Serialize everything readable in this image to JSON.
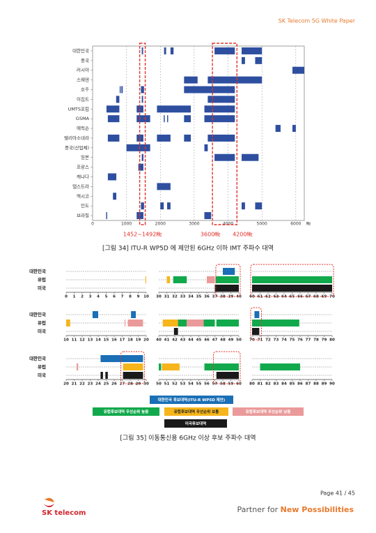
{
  "header": {
    "title": "SK Telecom 5G White Paper"
  },
  "chart_data": [
    {
      "type": "gantt",
      "caption": "[그림 34] ITU-R WP5D 에 제안된 6GHz 이하 IMT 주파수 대역",
      "x_unit": "㎒",
      "color": "#2e4fa0",
      "xlim": [
        0,
        6250
      ],
      "xticks": [
        0,
        1000,
        2000,
        3000,
        4000,
        5000,
        6000
      ],
      "grid": true,
      "categories": [
        "대한민국",
        "중국",
        "러시아",
        "스웨덴",
        "호주",
        "이집트",
        "UMTS포럼",
        "GSMA",
        "에릭슨",
        "텔리아소네라",
        "중국(산업체)",
        "일본",
        "프랑스",
        "캐나다",
        "텔스트라",
        "멕시코",
        "인도",
        "브라질"
      ],
      "ranges": [
        [
          [
            1452,
            1492
          ],
          [
            2110,
            2170
          ],
          [
            2300,
            2390
          ],
          [
            3600,
            4200
          ],
          [
            4400,
            5000
          ]
        ],
        [
          [
            4400,
            4500
          ],
          [
            4800,
            5000
          ]
        ],
        [
          [
            5900,
            6250
          ]
        ],
        [
          [
            2700,
            3100
          ],
          [
            3400,
            5000
          ]
        ],
        [
          [
            800,
            830
          ],
          [
            850,
            890
          ],
          [
            1427,
            1518
          ],
          [
            2700,
            4200
          ]
        ],
        [
          [
            694,
            790
          ],
          [
            1452,
            1492
          ],
          [
            3400,
            4200
          ]
        ],
        [
          [
            410,
            790
          ],
          [
            1300,
            1500
          ],
          [
            1900,
            2900
          ],
          [
            3300,
            4200
          ]
        ],
        [
          [
            450,
            790
          ],
          [
            1300,
            1700
          ],
          [
            2100,
            2130
          ],
          [
            2200,
            2230
          ],
          [
            2700,
            2900
          ],
          [
            3300,
            4200
          ]
        ],
        [
          [
            5400,
            5550
          ],
          [
            5900,
            6000
          ]
        ],
        [
          [
            450,
            790
          ],
          [
            1300,
            1500
          ],
          [
            1900,
            2300
          ],
          [
            2700,
            2900
          ],
          [
            3400,
            4200
          ]
        ],
        [
          [
            1000,
            1700
          ],
          [
            3300,
            3400
          ]
        ],
        [
          [
            1452,
            1500
          ],
          [
            3600,
            4200
          ],
          [
            4400,
            4900
          ]
        ],
        [
          [
            1350,
            1500
          ]
        ],
        [
          [
            450,
            700
          ]
        ],
        [
          [
            1900,
            2300
          ]
        ],
        [
          [
            600,
            700
          ]
        ],
        [
          [
            1427,
            1518
          ],
          [
            2000,
            2100
          ],
          [
            2200,
            2300
          ],
          [
            4400,
            4500
          ],
          [
            4800,
            5000
          ]
        ],
        [
          [
            400,
            430
          ],
          [
            1300,
            1500
          ],
          [
            3300,
            3500
          ]
        ]
      ],
      "highlights": [
        {
          "range": [
            1452,
            1492
          ],
          "labels": [
            "1452~1492㎒"
          ]
        },
        {
          "range": [
            3600,
            4200
          ],
          "labels": [
            "3600㎒",
            "4200㎒"
          ]
        }
      ]
    },
    {
      "type": "range-panels",
      "caption": "[그림 35] 이동통신용 6GHz 이상 후보 주파수 대역",
      "rows": [
        "대한민국",
        "유럽",
        "미국"
      ],
      "panels": [
        {
          "xlim": [
            0,
            10
          ],
          "xticks": [
            0,
            1,
            2,
            3,
            4,
            5,
            6,
            7,
            8,
            9,
            10
          ]
        },
        {
          "xlim": [
            10,
            20
          ],
          "xticks": [
            10,
            11,
            12,
            13,
            14,
            15,
            16,
            17,
            18,
            19,
            20
          ]
        },
        {
          "xlim": [
            20,
            30
          ],
          "xticks": [
            20,
            21,
            22,
            23,
            24,
            25,
            26,
            27,
            28,
            29,
            30
          ]
        },
        {
          "xlim": [
            30,
            40
          ],
          "xticks": [
            30,
            31,
            32,
            33,
            34,
            35,
            36,
            37,
            38,
            39,
            40
          ]
        },
        {
          "xlim": [
            40,
            50
          ],
          "xticks": [
            40,
            41,
            42,
            43,
            44,
            45,
            46,
            47,
            48,
            49,
            50
          ]
        },
        {
          "xlim": [
            50,
            60
          ],
          "xticks": [
            50,
            51,
            52,
            53,
            54,
            55,
            56,
            57,
            58,
            59,
            60
          ]
        },
        {
          "xlim": [
            60,
            70
          ],
          "xticks": [
            60,
            61,
            62,
            63,
            64,
            65,
            66,
            67,
            68,
            69,
            70
          ]
        },
        {
          "xlim": [
            70,
            80
          ],
          "xticks": [
            70,
            71,
            72,
            73,
            74,
            75,
            76,
            77,
            78,
            79,
            80
          ]
        },
        {
          "xlim": [
            80,
            90
          ],
          "xticks": [
            80,
            81,
            82,
            83,
            84,
            85,
            86,
            87,
            88,
            89,
            90
          ]
        }
      ],
      "series": [
        {
          "name": "대한민국 후보대역(ITU-R WP5D 제안)",
          "color": "#1a6fb6",
          "row": 0,
          "ranges": [
            [
              38,
              39.5
            ],
            [
              13.3,
              14
            ],
            [
              18.1,
              18.7
            ],
            [
              70.3,
              70.9
            ],
            [
              24.3,
              29.6
            ]
          ]
        },
        {
          "name": "유럽후보대역 우선순위 높음",
          "color": "#12a94c",
          "row": 1,
          "ranges": [
            [
              31.8,
              33.5
            ],
            [
              37.1,
              40
            ],
            [
              60,
              70
            ],
            [
              42.4,
              43.5
            ],
            [
              45.6,
              47
            ],
            [
              47.2,
              50
            ],
            [
              70,
              75.9
            ],
            [
              50,
              50.3
            ],
            [
              55.7,
              60
            ],
            [
              81,
              86
            ]
          ]
        },
        {
          "name": "유럽후보대역 우선순위 보통",
          "color": "#f5b51b",
          "row": 1,
          "ranges": [
            [
              9.9,
              10
            ],
            [
              31,
              31.4
            ],
            [
              10,
              10.5
            ],
            [
              40.5,
              42.4
            ],
            [
              27.1,
              29.6
            ],
            [
              50.4,
              52.6
            ]
          ]
        },
        {
          "name": "유럽후보대역 우선순위 낮음",
          "color": "#ea9a9a",
          "row": 1,
          "ranges": [
            [
              36,
              37
            ],
            [
              17.3,
              17.4
            ],
            [
              17.7,
              19.6
            ],
            [
              43.5,
              45.6
            ],
            [
              21.3,
              21.5
            ]
          ]
        },
        {
          "name": "미국후보대역",
          "color": "#1a1a1a",
          "row": 2,
          "ranges": [
            [
              37,
              40
            ],
            [
              60,
              70
            ],
            [
              41.9,
              42.4
            ],
            [
              70,
              70.9
            ],
            [
              24.3,
              24.6
            ],
            [
              24.9,
              25.2
            ],
            [
              27.1,
              29.6
            ],
            [
              57.2,
              60
            ]
          ]
        }
      ],
      "highlights": [
        [
          37.3,
          40
        ],
        [
          60,
          70
        ],
        [
          70,
          71
        ],
        [
          27,
          29.6
        ],
        [
          57,
          60
        ]
      ]
    }
  ],
  "footer": {
    "page": "Page 41 / 45",
    "logo": "SK telecom",
    "slogan_prefix": "Partner for ",
    "slogan_highlight": "New Possibilities"
  }
}
